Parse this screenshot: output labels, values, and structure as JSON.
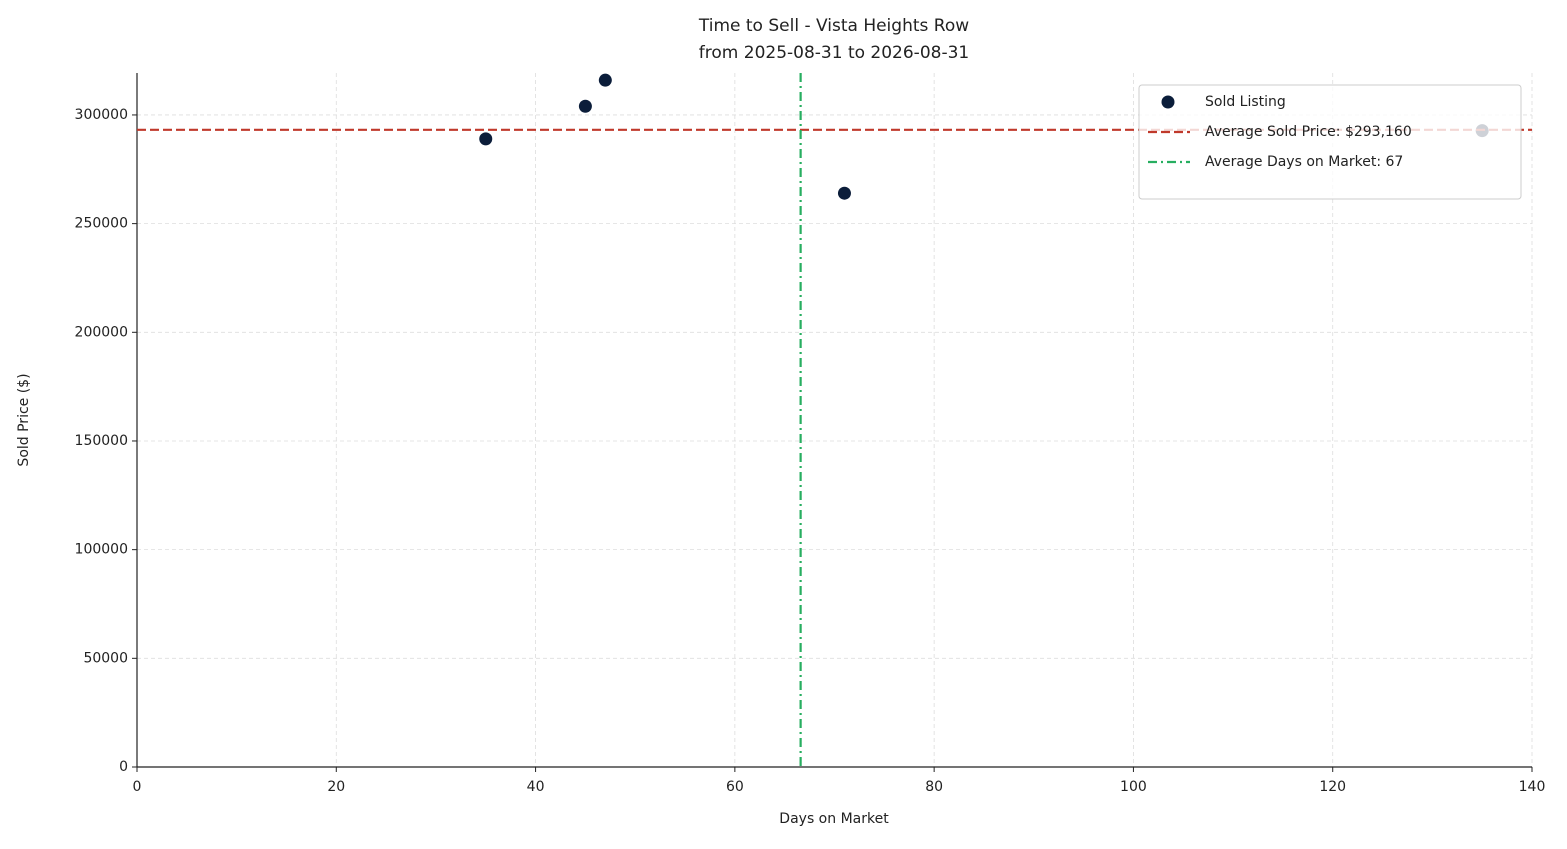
{
  "chart_data": {
    "type": "scatter",
    "title": "Time to Sell - Vista Heights Row",
    "subtitle": "from 2025-08-31 to 2026-08-31",
    "xlabel": "Days on Market",
    "ylabel": "Sold Price ($)",
    "series": [
      {
        "name": "Sold Listing",
        "color": "#0b1d3a",
        "x": [
          35,
          45,
          47,
          71,
          135
        ],
        "values": [
          289000,
          304000,
          316000,
          264000,
          292800
        ]
      }
    ],
    "reference_lines": [
      {
        "name": "Average Sold Price: $293,160",
        "orientation": "horizontal",
        "value": 293160,
        "color": "#c0392b",
        "dash": "dashed"
      },
      {
        "name": "Average Days on Market: 67",
        "orientation": "vertical",
        "value": 66.6,
        "color": "#27ae60",
        "dash": "dashdot"
      }
    ],
    "xlim": [
      0,
      140
    ],
    "xticks": [
      0,
      20,
      40,
      60,
      80,
      100,
      120,
      140
    ],
    "ylim": [
      0,
      319300
    ],
    "yticks": [
      0,
      50000,
      100000,
      150000,
      200000,
      250000,
      300000
    ],
    "grid": true,
    "legend": "upper right"
  }
}
